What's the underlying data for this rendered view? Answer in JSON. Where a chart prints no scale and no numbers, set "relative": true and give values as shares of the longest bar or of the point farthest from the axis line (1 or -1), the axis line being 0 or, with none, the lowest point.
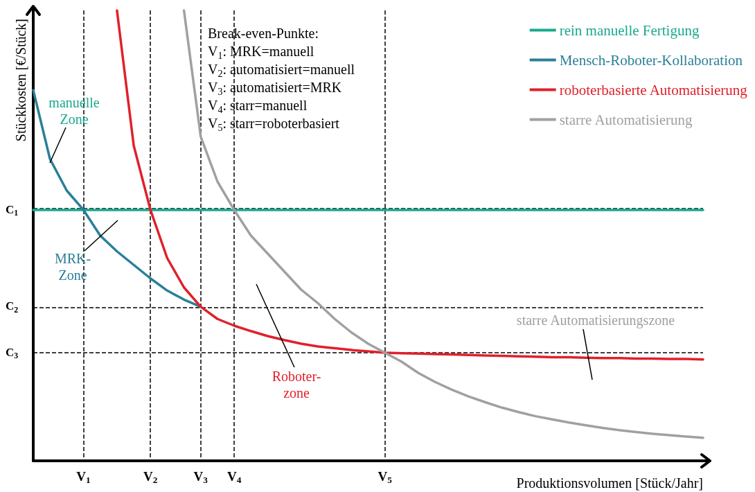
{
  "chart_data": {
    "type": "line",
    "relative": true,
    "xlabel": "Produktionsvolumen [Stück/Jahr]",
    "ylabel": "Stückkosten [€/Stück]",
    "categories": [
      null,
      null,
      null,
      "V$_{1}$",
      null,
      null,
      null,
      "V$_{2}$",
      null,
      null,
      "V$_{3}$",
      null,
      "V$_{4}$",
      null,
      null,
      null,
      null,
      null,
      null,
      null,
      null,
      "V$_{5}$",
      null,
      null,
      null,
      null,
      null,
      null,
      null,
      null,
      null,
      null,
      null,
      null,
      null,
      null,
      null,
      null,
      null,
      null,
      null
    ],
    "series": [
      {
        "name": "rein manuelle Fertigung",
        "color": "#1aa98d",
        "values": [
          0.557,
          0.557,
          0.557,
          0.557,
          0.557,
          0.557,
          0.557,
          0.557,
          0.557,
          0.557,
          0.557,
          0.557,
          0.557,
          0.557,
          0.557,
          0.557,
          0.557,
          0.557,
          0.557,
          0.557,
          0.557,
          0.557,
          0.557,
          0.557,
          0.557,
          0.557,
          0.557,
          0.557,
          0.557,
          0.557,
          0.557,
          0.557,
          0.557,
          0.557,
          0.557,
          0.557,
          0.557,
          0.557,
          0.557,
          0.557,
          0.557
        ]
      },
      {
        "name": "Mensch-Roboter-Kollaboration",
        "color": "#2a7f98",
        "values": [
          0.823,
          0.67,
          0.6,
          0.557,
          0.5,
          0.465,
          0.435,
          0.405,
          0.378,
          0.358,
          0.342,
          null,
          null,
          null,
          null,
          null,
          null,
          null,
          null,
          null,
          null,
          null,
          null,
          null,
          null,
          null,
          null,
          null,
          null,
          null,
          null,
          null,
          null,
          null,
          null,
          null,
          null,
          null,
          null,
          null,
          null
        ]
      },
      {
        "name": "roboterbasierte Automatisierung",
        "color": "#e0202a",
        "values": [
          null,
          null,
          null,
          null,
          null,
          1.0,
          0.7,
          0.557,
          0.45,
          0.385,
          0.342,
          0.315,
          0.3,
          0.288,
          0.277,
          0.268,
          0.26,
          0.254,
          0.25,
          0.246,
          0.243,
          0.24,
          0.239,
          0.238,
          0.237,
          0.236,
          0.235,
          0.234,
          0.233,
          0.232,
          0.231,
          0.23,
          0.23,
          0.229,
          0.228,
          0.228,
          0.227,
          0.227,
          0.226,
          0.226,
          0.225
        ]
      },
      {
        "name": "starre Automatisierung",
        "color": "#a0a0a4",
        "values": [
          null,
          null,
          null,
          null,
          null,
          null,
          null,
          null,
          null,
          1.0,
          0.72,
          0.62,
          0.557,
          0.5,
          0.46,
          0.42,
          0.38,
          0.35,
          0.315,
          0.285,
          0.26,
          0.24,
          0.22,
          0.195,
          0.175,
          0.158,
          0.143,
          0.13,
          0.118,
          0.108,
          0.099,
          0.092,
          0.085,
          0.079,
          0.073,
          0.068,
          0.064,
          0.06,
          0.057,
          0.054,
          0.051
        ]
      }
    ],
    "grid": "x",
    "ref_lines": [
      {
        "axis": "y",
        "value": 0.557,
        "label": "C$_{1}$",
        "line_style": "dashed",
        "color": "#000000"
      },
      {
        "axis": "y",
        "value": 0.342,
        "label": "C$_{2}$",
        "line_style": "dashed",
        "color": "#000000"
      },
      {
        "axis": "y",
        "value": 0.24,
        "label": "C$_{3}$",
        "line_style": "dashed",
        "color": "#000000"
      }
    ],
    "legend": "top right",
    "annotations": [
      "Break-even-Punkte:",
      "V$_{1}$: MRK=manuell",
      "V$_{2}$: automatisiert=manuell",
      "V$_{3}$: automatisiert=MRK",
      "V$_{4}$: starr=manuell",
      "V$_{5}$: starr=roboterbasiert",
      "manuelle\nZone",
      "MRK-\nZone",
      "Roboter-\nzone",
      "starre Automatisierungszone"
    ]
  }
}
